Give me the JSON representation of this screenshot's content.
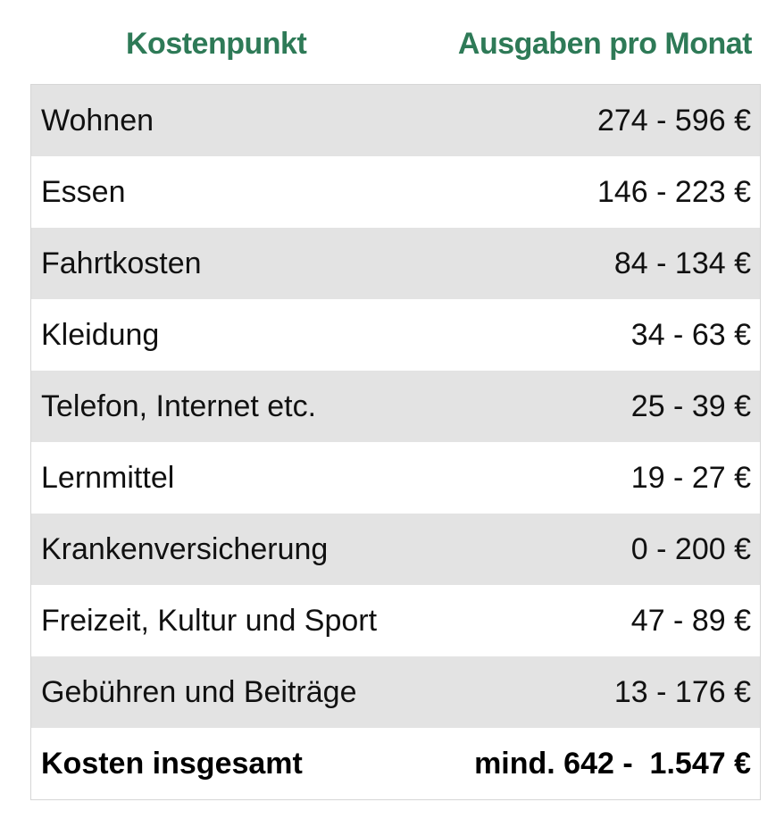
{
  "header": {
    "col_item": "Kostenpunkt",
    "col_amount": "Ausgaben pro Monat"
  },
  "rows": [
    {
      "item": "Wohnen",
      "amount": "274 - 596 €"
    },
    {
      "item": "Essen",
      "amount": "146 - 223 €"
    },
    {
      "item": "Fahrtkosten",
      "amount": "84 - 134 €"
    },
    {
      "item": "Kleidung",
      "amount": "34 - 63 €"
    },
    {
      "item": "Telefon, Internet etc.",
      "amount": "25 - 39 €"
    },
    {
      "item": "Lernmittel",
      "amount": "19 - 27 €"
    },
    {
      "item": "Krankenversicherung",
      "amount": "0 - 200 €"
    },
    {
      "item": "Freizeit, Kultur und Sport",
      "amount": "47 - 89 €"
    },
    {
      "item": "Gebühren und Beiträge",
      "amount": "13 - 176 €"
    }
  ],
  "total": {
    "item": "Kosten insgesamt",
    "amount": "mind. 642 -  1.547 €"
  },
  "colors": {
    "header_text": "#2e7a57",
    "row_shade": "#e3e3e3",
    "row_plain": "#ffffff"
  }
}
